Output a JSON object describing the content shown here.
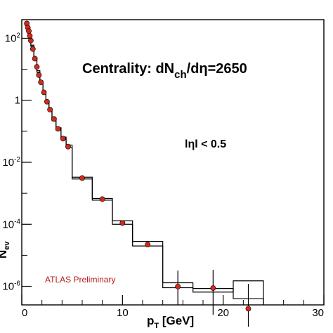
{
  "chart_data": {
    "type": "scatter",
    "title": "Centrality: dN",
    "title_sub": "ch",
    "title_rest": "/dη=2650",
    "annotation": "lηl < 0.5",
    "watermark": "ATLAS Preliminary",
    "xlabel": "p",
    "xlabel_sub": "T",
    "xlabel_unit": " [GeV]",
    "ylabel": "N",
    "ylabel_sub": "ev",
    "xlim": [
      0,
      30
    ],
    "ylim_log10": [
      -6.6,
      2.6
    ],
    "y_scale": "log",
    "x_ticks": [
      0,
      10,
      20,
      30
    ],
    "y_ticks": [
      {
        "base": "10",
        "exp": "2",
        "value": 100
      },
      {
        "base": "1",
        "exp": "",
        "value": 1
      },
      {
        "base": "10",
        "exp": "-2",
        "value": 0.01
      },
      {
        "base": "10",
        "exp": "-4",
        "value": 0.0001
      },
      {
        "base": "10",
        "exp": "-6",
        "value": 1e-06
      }
    ],
    "series": [
      {
        "marker_color": "#d42a1c",
        "points": [
          {
            "x": 0.5,
            "y": 300
          },
          {
            "x": 0.6,
            "y": 220
          },
          {
            "x": 0.7,
            "y": 170
          },
          {
            "x": 0.8,
            "y": 120
          },
          {
            "x": 0.9,
            "y": 85
          },
          {
            "x": 1.1,
            "y": 45
          },
          {
            "x": 1.3,
            "y": 22
          },
          {
            "x": 1.5,
            "y": 12
          },
          {
            "x": 1.7,
            "y": 6.5
          },
          {
            "x": 1.9,
            "y": 3.8
          },
          {
            "x": 2.2,
            "y": 1.8
          },
          {
            "x": 2.5,
            "y": 0.9
          },
          {
            "x": 2.8,
            "y": 0.5
          },
          {
            "x": 3.2,
            "y": 0.25
          },
          {
            "x": 3.6,
            "y": 0.12
          },
          {
            "x": 4.1,
            "y": 0.058
          },
          {
            "x": 4.6,
            "y": 0.032
          },
          {
            "x": 6.0,
            "y": 0.0031
          },
          {
            "x": 8.0,
            "y": 0.00065
          },
          {
            "x": 10.0,
            "y": 0.00011
          },
          {
            "x": 12.5,
            "y": 2.2e-05
          },
          {
            "x": 15.5,
            "y": 9.8e-07
          },
          {
            "x": 19.0,
            "y": 8.8e-07
          },
          {
            "x": 22.5,
            "y": 1.9e-07
          }
        ],
        "error_points": [
          {
            "x": 15.5,
            "ylo": 2.5e-07,
            "yhi": 3.2e-06
          },
          {
            "x": 19.0,
            "ylo": 1.2e-07,
            "yhi": 3.4e-06
          },
          {
            "x": 22.5,
            "ylo": 5e-08,
            "yhi": 1.2e-06
          }
        ],
        "histograms": [
          {
            "bins": [
              {
                "x0": 0.3,
                "x1": 0.5,
                "y": 260
              },
              {
                "x0": 0.5,
                "x1": 0.7,
                "y": 180
              },
              {
                "x0": 0.7,
                "x1": 0.9,
                "y": 110
              },
              {
                "x0": 0.9,
                "x1": 1.2,
                "y": 55
              },
              {
                "x0": 1.2,
                "x1": 1.5,
                "y": 20
              },
              {
                "x0": 1.5,
                "x1": 1.8,
                "y": 8
              },
              {
                "x0": 1.8,
                "x1": 2.1,
                "y": 3.5
              },
              {
                "x0": 2.1,
                "x1": 2.4,
                "y": 1.7
              },
              {
                "x0": 2.4,
                "x1": 2.7,
                "y": 0.85
              },
              {
                "x0": 2.7,
                "x1": 3.0,
                "y": 0.45
              },
              {
                "x0": 3.0,
                "x1": 3.4,
                "y": 0.22
              },
              {
                "x0": 3.4,
                "x1": 3.9,
                "y": 0.11
              },
              {
                "x0": 3.9,
                "x1": 4.4,
                "y": 0.055
              },
              {
                "x0": 4.4,
                "x1": 5.0,
                "y": 0.03
              },
              {
                "x0": 5.0,
                "x1": 7.0,
                "y": 0.0033
              },
              {
                "x0": 7.0,
                "x1": 9.0,
                "y": 0.00068
              },
              {
                "x0": 9.0,
                "x1": 11.0,
                "y": 0.00013
              },
              {
                "x0": 11.0,
                "x1": 14.0,
                "y": 2.8e-05
              },
              {
                "x0": 14.0,
                "x1": 17.0,
                "y": 1.3e-06
              },
              {
                "x0": 17.0,
                "x1": 21.0,
                "y": 8.5e-07
              },
              {
                "x0": 21.0,
                "x1": 24.0,
                "y": 4e-07
              }
            ]
          },
          {
            "bins": [
              {
                "x0": 0.3,
                "x1": 0.5,
                "y": 280
              },
              {
                "x0": 0.5,
                "x1": 0.7,
                "y": 200
              },
              {
                "x0": 0.7,
                "x1": 0.9,
                "y": 125
              },
              {
                "x0": 0.9,
                "x1": 1.2,
                "y": 60
              },
              {
                "x0": 1.2,
                "x1": 1.5,
                "y": 24
              },
              {
                "x0": 1.5,
                "x1": 1.8,
                "y": 9
              },
              {
                "x0": 1.8,
                "x1": 2.1,
                "y": 4.2
              },
              {
                "x0": 2.1,
                "x1": 2.4,
                "y": 1.9
              },
              {
                "x0": 2.4,
                "x1": 2.7,
                "y": 0.95
              },
              {
                "x0": 2.7,
                "x1": 3.0,
                "y": 0.5
              },
              {
                "x0": 3.0,
                "x1": 3.4,
                "y": 0.26
              },
              {
                "x0": 3.4,
                "x1": 3.9,
                "y": 0.13
              },
              {
                "x0": 3.9,
                "x1": 4.4,
                "y": 0.065
              },
              {
                "x0": 4.4,
                "x1": 5.0,
                "y": 0.036
              },
              {
                "x0": 5.0,
                "x1": 7.0,
                "y": 0.0029
              },
              {
                "x0": 7.0,
                "x1": 9.0,
                "y": 0.0006
              },
              {
                "x0": 9.0,
                "x1": 11.0,
                "y": 0.0001
              },
              {
                "x0": 11.0,
                "x1": 14.0,
                "y": 2e-05
              },
              {
                "x0": 14.0,
                "x1": 17.0,
                "y": 9e-07
              },
              {
                "x0": 17.0,
                "x1": 21.0,
                "y": 6.5e-07
              },
              {
                "x0": 21.0,
                "x1": 24.0,
                "y": 1.5e-06
              }
            ]
          }
        ]
      }
    ]
  }
}
